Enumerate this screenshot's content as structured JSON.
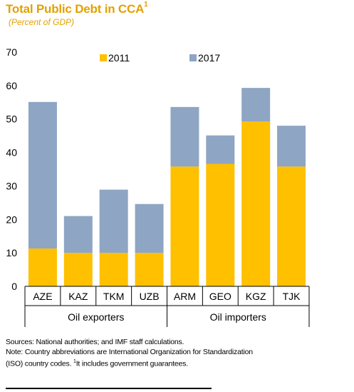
{
  "header": {
    "title": "Total Public Debt in CCA",
    "title_footnote_mark": "1",
    "subtitle": "(Percent of GDP)"
  },
  "chart_data": {
    "type": "bar",
    "stacked": true,
    "categories": [
      "AZE",
      "KAZ",
      "TKM",
      "UZB",
      "ARM",
      "GEO",
      "KGZ",
      "TJK"
    ],
    "groups": [
      {
        "label": "Oil exporters",
        "categories": [
          "AZE",
          "KAZ",
          "TKM",
          "UZB"
        ]
      },
      {
        "label": "Oil importers",
        "categories": [
          "ARM",
          "GEO",
          "KGZ",
          "TJK"
        ]
      }
    ],
    "series": [
      {
        "name": "2011",
        "color": "#FFC000",
        "values": [
          11.3,
          10.0,
          10.0,
          10.0,
          35.8,
          36.6,
          49.3,
          35.8
        ]
      },
      {
        "name": "2017",
        "color": "#8EA5C3",
        "values": [
          43.8,
          11.0,
          18.9,
          14.6,
          17.8,
          8.5,
          10.0,
          12.2
        ]
      }
    ],
    "ylim": [
      0,
      70
    ],
    "yticks": [
      "0",
      "10",
      "20",
      "30",
      "40",
      "50",
      "60",
      "70"
    ],
    "grid": false,
    "legend_position": "top"
  },
  "notes": {
    "sources": "Sources: National authorities; and IMF staff calculations.",
    "note_line1": "Note: Country abbreviations are International Organization for Standardization",
    "note_line2_pre": "(ISO) country codes. ",
    "note_mark": "1",
    "note_line2_post": "It includes government guarantees."
  }
}
